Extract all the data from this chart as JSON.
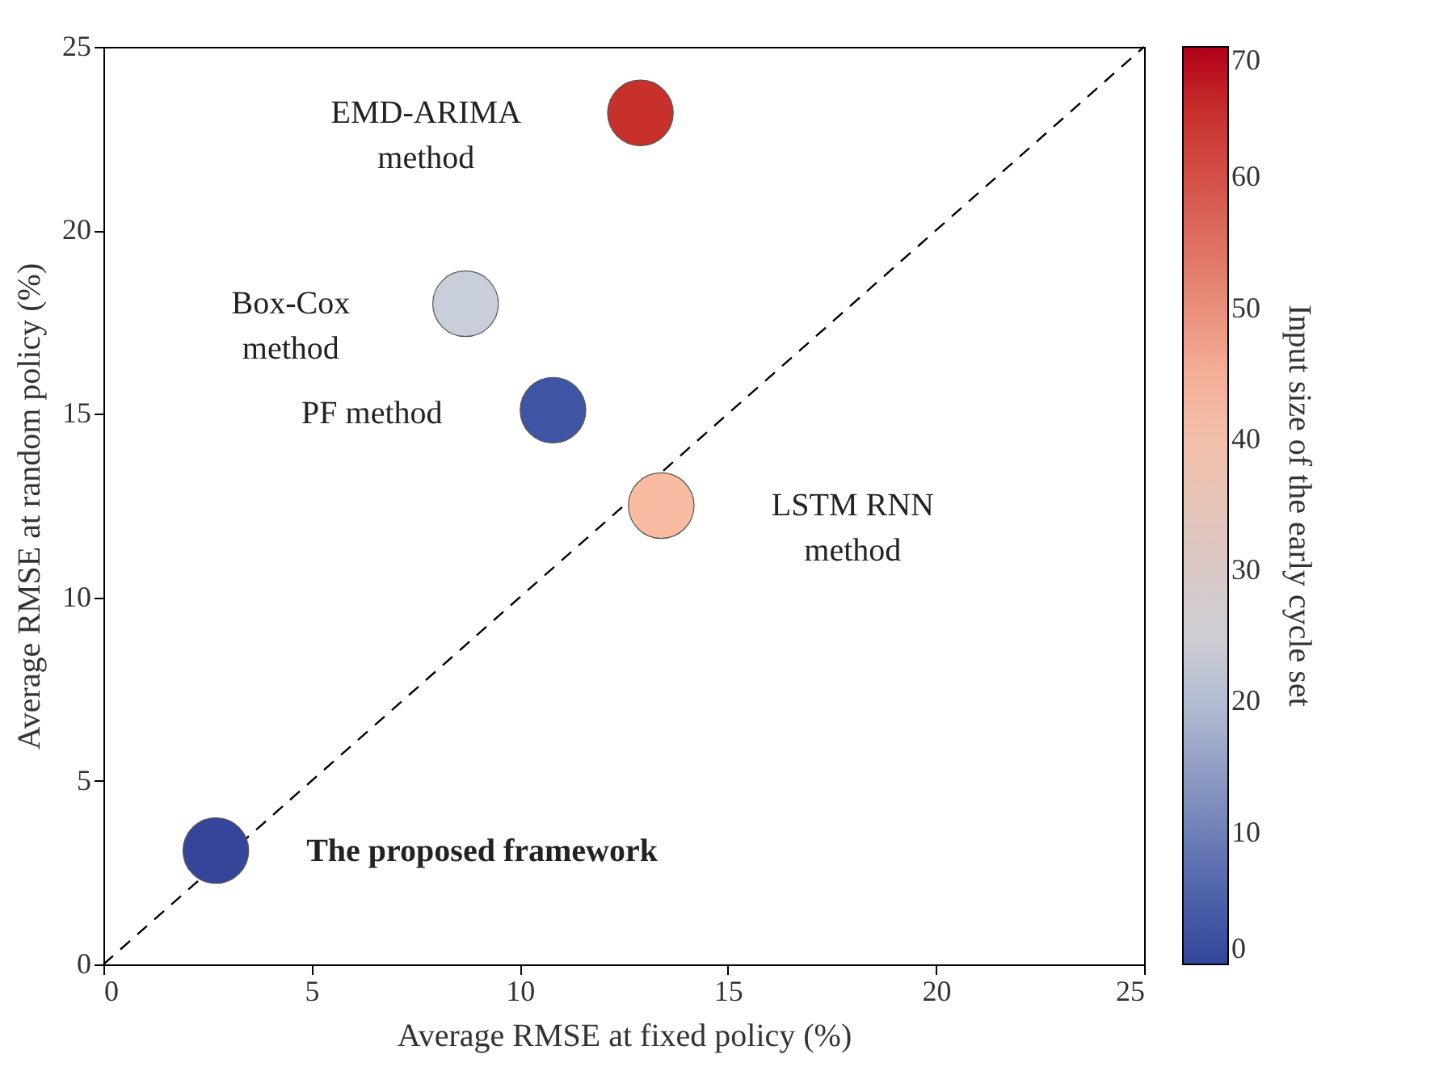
{
  "chart_data": {
    "type": "scatter",
    "xlabel": "Average RMSE at fixed policy (%)",
    "ylabel": "Average RMSE at random policy (%)",
    "clabel": "Input size of the early cycle set",
    "xlim": [
      0,
      25
    ],
    "xticks": [
      0,
      5,
      10,
      15,
      20,
      25
    ],
    "ylim": [
      0,
      25
    ],
    "yticks": [
      0,
      5,
      10,
      15,
      20,
      25
    ],
    "clim": [
      0,
      70
    ],
    "cticks": [
      0,
      10,
      20,
      30,
      40,
      50,
      60,
      70
    ],
    "grid": false,
    "series": [
      {
        "marker": "circle",
        "x": [
          12.9,
          8.7,
          10.8,
          13.4,
          2.7
        ],
        "values": [
          23.2,
          18.0,
          15.1,
          12.5,
          3.1
        ],
        "cvalues": [
          65,
          23,
          3,
          43,
          0
        ],
        "colors": [
          "#c8302c",
          "#c8cfda",
          "#3f55a4",
          "#f9bca2",
          "#34459a"
        ]
      },
      {
        "type": "line",
        "x": [
          0,
          25
        ],
        "values": [
          0,
          25
        ],
        "color": "#000000",
        "line_style": "dashed"
      }
    ],
    "annotations": [
      "EMD-ARIMA\nmethod",
      "Box-Cox\nmethod",
      "PF method",
      "LSTM RNN\nmethod",
      "The proposed framework"
    ]
  }
}
